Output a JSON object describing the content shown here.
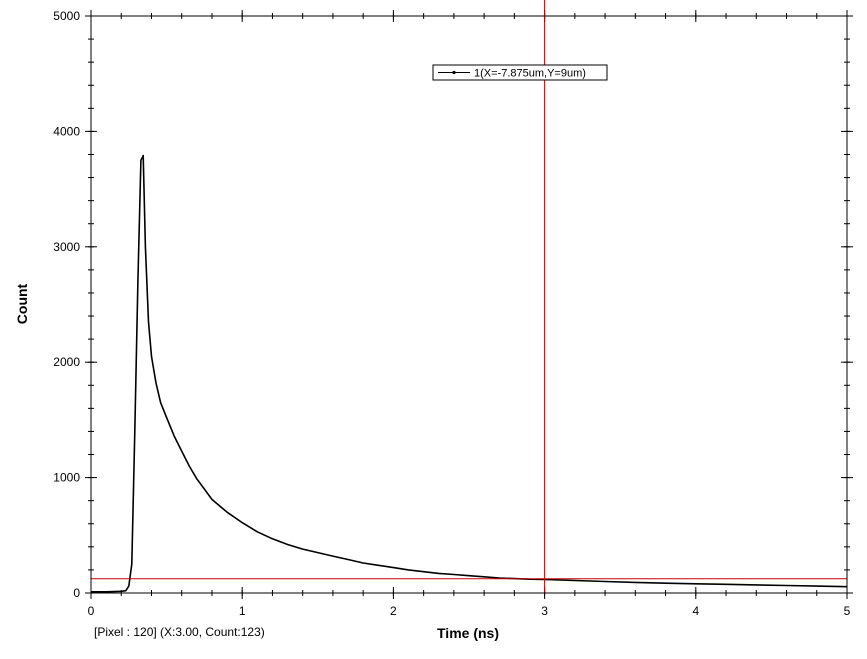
{
  "status_text": "[Pixel : 120] (X:3.00, Count:123)",
  "chart_data": {
    "type": "line",
    "xlabel": "Time (ns)",
    "ylabel": "Count",
    "xlim": [
      0,
      5
    ],
    "ylim": [
      0,
      5000
    ],
    "x_ticks": [
      "0",
      "1",
      "2",
      "3",
      "4",
      "5"
    ],
    "y_ticks": [
      "0",
      "1000",
      "2000",
      "3000",
      "4000",
      "5000"
    ],
    "grid": false,
    "legend_position": "top-center",
    "cursor": {
      "x": 3.0,
      "count": 123
    },
    "colors": {
      "series": "#000000",
      "cursor": "#cc0000",
      "frame": "#000000"
    },
    "series": [
      {
        "name": "1(X=-7.875um,Y=9um)",
        "x": [
          0,
          0.1,
          0.2,
          0.23,
          0.25,
          0.27,
          0.29,
          0.31,
          0.33,
          0.345,
          0.36,
          0.38,
          0.4,
          0.43,
          0.46,
          0.5,
          0.55,
          0.6,
          0.65,
          0.7,
          0.75,
          0.8,
          0.9,
          1.0,
          1.1,
          1.2,
          1.3,
          1.4,
          1.5,
          1.6,
          1.7,
          1.8,
          1.9,
          2.0,
          2.1,
          2.2,
          2.3,
          2.4,
          2.5,
          2.6,
          2.7,
          2.8,
          2.9,
          3.0,
          3.2,
          3.4,
          3.6,
          3.8,
          4.0,
          4.2,
          4.4,
          4.6,
          4.8,
          5.0
        ],
        "y": [
          10,
          10,
          15,
          20,
          60,
          250,
          1400,
          2700,
          3750,
          3790,
          3000,
          2350,
          2050,
          1820,
          1650,
          1520,
          1360,
          1230,
          1100,
          990,
          900,
          810,
          700,
          610,
          530,
          470,
          420,
          380,
          350,
          320,
          290,
          260,
          240,
          220,
          200,
          185,
          170,
          160,
          150,
          140,
          130,
          125,
          120,
          118,
          108,
          100,
          92,
          85,
          80,
          75,
          70,
          65,
          60,
          55
        ]
      }
    ]
  }
}
